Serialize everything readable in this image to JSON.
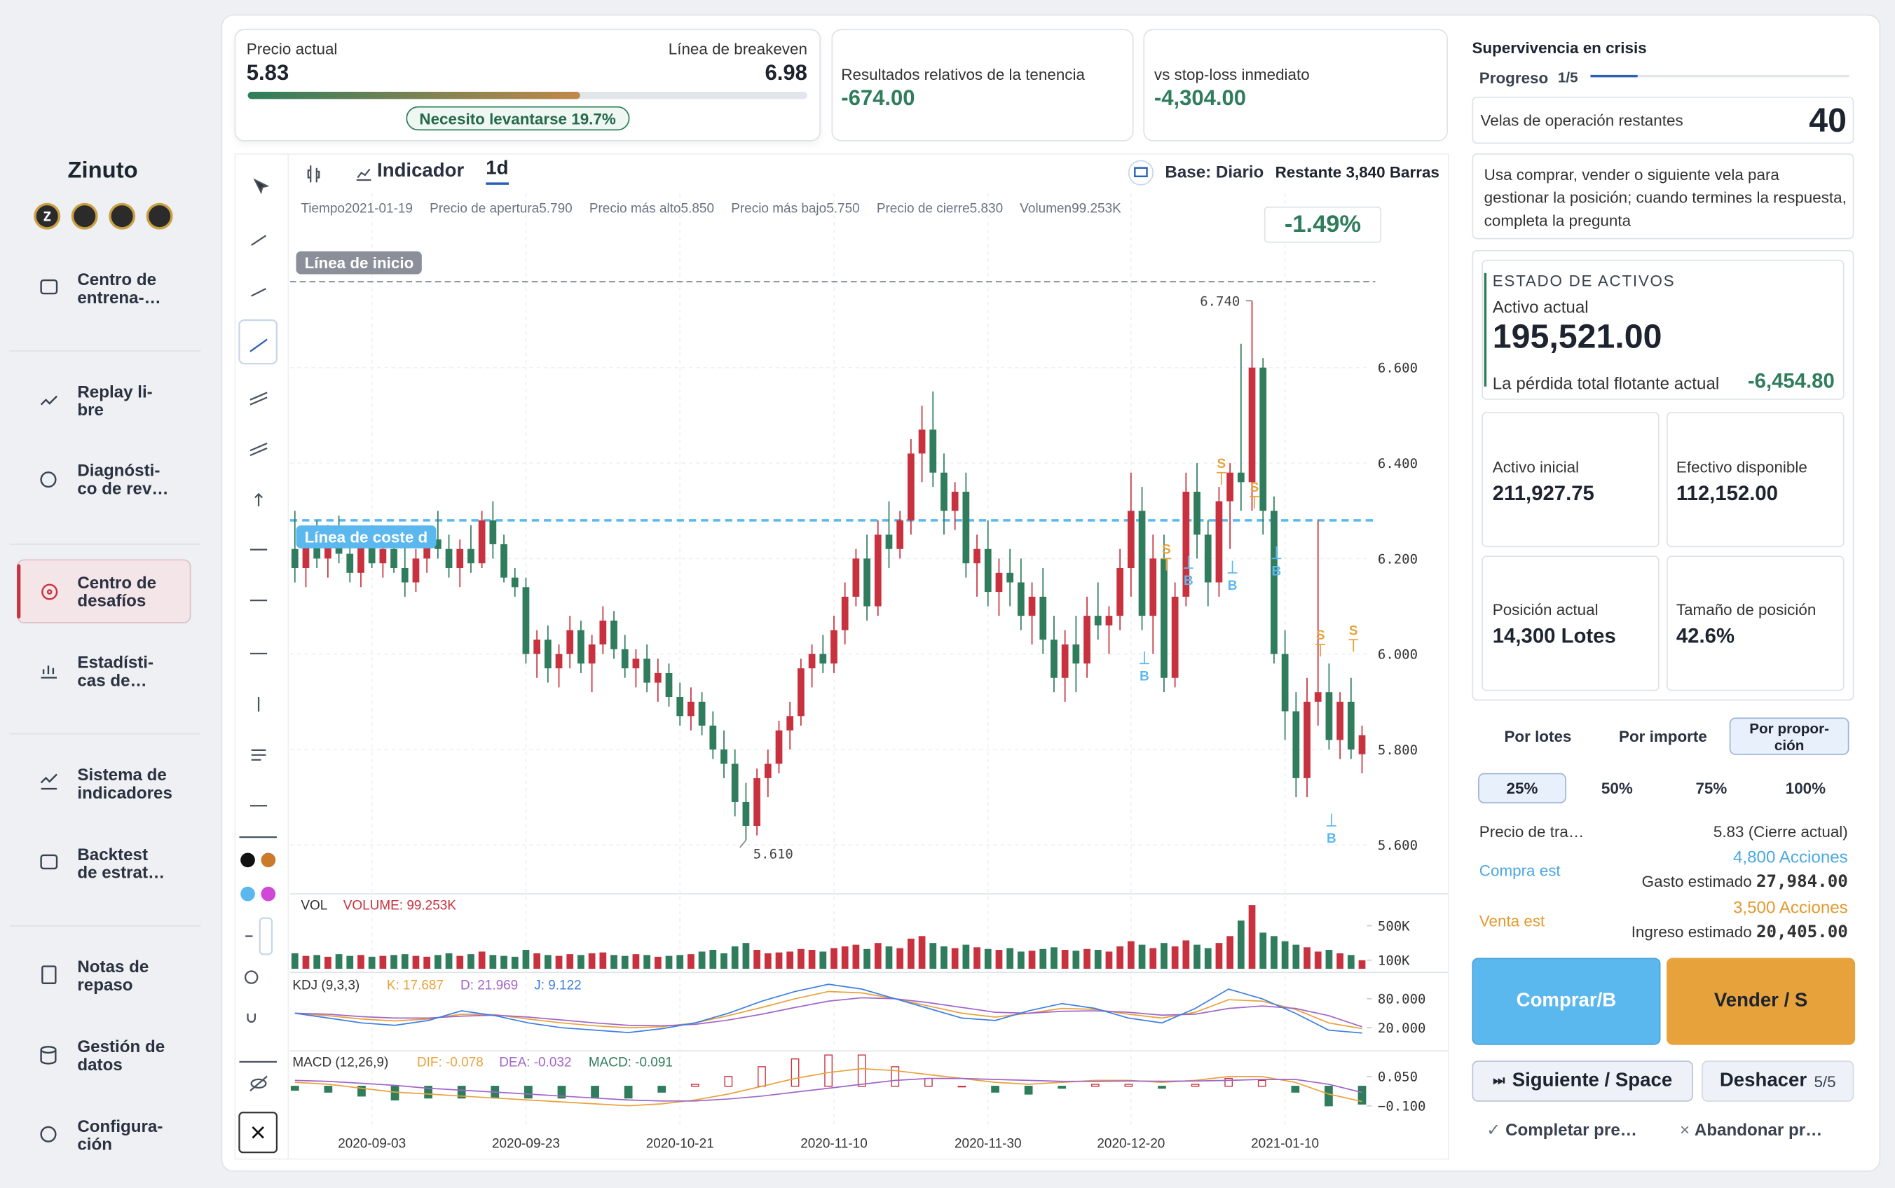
{
  "sidebar": {
    "brand": "Zinuto",
    "nav": [
      "Centro de\nentrena-…",
      "Replay li-\nbre",
      "Diagnósti-\nco de rev…",
      "Centro de\ndesafíos",
      "Estadísti-\ncas de…",
      "Sistema de\nindicadores",
      "Backtest\nde estrat…",
      "Notas de\nrepaso",
      "Gestión de\ndatos",
      "Configura-\nción"
    ]
  },
  "header": {
    "price_label": "Precio actual",
    "price": "5.83",
    "breakeven_label": "Línea de breakeven",
    "breakeven": "6.98",
    "badge": "Necesito levantarse 19.7%",
    "holding_label": "Resultados relativos de la tenencia",
    "holding": "-674.00",
    "stop_label": "vs stop-loss inmediato",
    "stop": "-4,304.00"
  },
  "toolbar": {
    "indicator": "Indicador",
    "period": "1d",
    "base": "Base: Diario",
    "remaining": "Restante 3,840 Barras"
  },
  "ohlc_info": [
    "Tiempo2021-01-19",
    "Precio de apertura5.790",
    "Precio más alto5.850",
    "Precio más bajo5.750",
    "Precio de cierre5.830",
    "Volumen99.253K"
  ],
  "change": "-1.49%",
  "start_line_label": "Línea de inicio",
  "cost_line_label": "Línea de coste d",
  "chart_data": {
    "type": "candlestick",
    "ylim": [
      5.5,
      6.95
    ],
    "yticks": [
      {
        "value": 5.6,
        "label": "5.600"
      },
      {
        "value": 5.8,
        "label": "5.800"
      },
      {
        "value": 6.0,
        "label": "6.000"
      },
      {
        "value": 6.2,
        "label": "6.200"
      },
      {
        "value": 6.4,
        "label": "6.400"
      },
      {
        "value": 6.6,
        "label": "6.600"
      }
    ],
    "xticks": [
      {
        "value": 7,
        "label": "2020-09-03"
      },
      {
        "value": 21,
        "label": "2020-09-23"
      },
      {
        "value": 35,
        "label": "2020-10-21"
      },
      {
        "value": 49,
        "label": "2020-11-10"
      },
      {
        "value": 63,
        "label": "2020-11-30"
      },
      {
        "value": 76,
        "label": "2020-12-20"
      },
      {
        "value": 90,
        "label": "2021-01-10"
      }
    ],
    "grid": true,
    "up_color": "#c8323e",
    "down_color": "#2f7d5c",
    "start_line": 6.78,
    "cost_line": 6.28,
    "annotations": [
      {
        "value": 6.74,
        "label": "6.740",
        "index": 87
      },
      {
        "value": 5.61,
        "label": "5.610",
        "index": 41
      }
    ],
    "candles": [
      [
        6.22,
        6.3,
        6.15,
        6.18
      ],
      [
        6.18,
        6.26,
        6.14,
        6.24
      ],
      [
        6.24,
        6.28,
        6.18,
        6.2
      ],
      [
        6.2,
        6.27,
        6.16,
        6.23
      ],
      [
        6.23,
        6.29,
        6.19,
        6.21
      ],
      [
        6.21,
        6.26,
        6.15,
        6.17
      ],
      [
        6.17,
        6.25,
        6.14,
        6.23
      ],
      [
        6.23,
        6.27,
        6.18,
        6.19
      ],
      [
        6.19,
        6.24,
        6.16,
        6.22
      ],
      [
        6.22,
        6.26,
        6.17,
        6.18
      ],
      [
        6.18,
        6.23,
        6.12,
        6.15
      ],
      [
        6.15,
        6.22,
        6.13,
        6.2
      ],
      [
        6.2,
        6.26,
        6.17,
        6.24
      ],
      [
        6.24,
        6.3,
        6.2,
        6.22
      ],
      [
        6.22,
        6.25,
        6.16,
        6.18
      ],
      [
        6.18,
        6.24,
        6.14,
        6.22
      ],
      [
        6.22,
        6.27,
        6.17,
        6.19
      ],
      [
        6.19,
        6.3,
        6.18,
        6.28
      ],
      [
        6.28,
        6.32,
        6.2,
        6.23
      ],
      [
        6.23,
        6.25,
        6.15,
        6.16
      ],
      [
        6.16,
        6.18,
        6.12,
        6.14
      ],
      [
        6.14,
        6.16,
        5.98,
        6.0
      ],
      [
        6.0,
        6.05,
        5.95,
        6.03
      ],
      [
        6.03,
        6.06,
        5.94,
        5.97
      ],
      [
        5.97,
        6.02,
        5.93,
        6.0
      ],
      [
        6.0,
        6.08,
        5.97,
        6.05
      ],
      [
        6.05,
        6.07,
        5.96,
        5.98
      ],
      [
        5.98,
        6.04,
        5.92,
        6.02
      ],
      [
        6.02,
        6.1,
        6.0,
        6.07
      ],
      [
        6.07,
        6.09,
        5.99,
        6.01
      ],
      [
        6.01,
        6.04,
        5.95,
        5.97
      ],
      [
        5.97,
        6.01,
        5.93,
        5.99
      ],
      [
        5.99,
        6.02,
        5.92,
        5.94
      ],
      [
        5.94,
        5.99,
        5.9,
        5.96
      ],
      [
        5.96,
        5.98,
        5.89,
        5.91
      ],
      [
        5.91,
        5.94,
        5.85,
        5.87
      ],
      [
        5.87,
        5.93,
        5.84,
        5.9
      ],
      [
        5.9,
        5.92,
        5.83,
        5.85
      ],
      [
        5.85,
        5.88,
        5.78,
        5.8
      ],
      [
        5.8,
        5.84,
        5.74,
        5.77
      ],
      [
        5.77,
        5.8,
        5.66,
        5.69
      ],
      [
        5.69,
        5.73,
        5.61,
        5.64
      ],
      [
        5.64,
        5.76,
        5.62,
        5.74
      ],
      [
        5.74,
        5.8,
        5.7,
        5.77
      ],
      [
        5.77,
        5.86,
        5.75,
        5.84
      ],
      [
        5.84,
        5.9,
        5.8,
        5.87
      ],
      [
        5.87,
        5.99,
        5.85,
        5.97
      ],
      [
        5.97,
        6.02,
        5.93,
        6.0
      ],
      [
        6.0,
        6.04,
        5.96,
        5.98
      ],
      [
        5.98,
        6.08,
        5.96,
        6.05
      ],
      [
        6.05,
        6.15,
        6.02,
        6.12
      ],
      [
        6.12,
        6.22,
        6.1,
        6.2
      ],
      [
        6.2,
        6.25,
        6.07,
        6.1
      ],
      [
        6.1,
        6.28,
        6.08,
        6.25
      ],
      [
        6.25,
        6.32,
        6.18,
        6.22
      ],
      [
        6.22,
        6.3,
        6.2,
        6.28
      ],
      [
        6.28,
        6.45,
        6.25,
        6.42
      ],
      [
        6.42,
        6.52,
        6.36,
        6.47
      ],
      [
        6.47,
        6.55,
        6.35,
        6.38
      ],
      [
        6.38,
        6.42,
        6.25,
        6.3
      ],
      [
        6.3,
        6.36,
        6.26,
        6.34
      ],
      [
        6.34,
        6.38,
        6.16,
        6.19
      ],
      [
        6.19,
        6.25,
        6.12,
        6.22
      ],
      [
        6.22,
        6.28,
        6.1,
        6.13
      ],
      [
        6.13,
        6.2,
        6.08,
        6.17
      ],
      [
        6.17,
        6.22,
        6.1,
        6.15
      ],
      [
        6.15,
        6.2,
        6.05,
        6.08
      ],
      [
        6.08,
        6.15,
        6.02,
        6.12
      ],
      [
        6.12,
        6.18,
        6.0,
        6.03
      ],
      [
        6.03,
        6.08,
        5.92,
        5.95
      ],
      [
        5.95,
        6.05,
        5.9,
        6.02
      ],
      [
        6.02,
        6.08,
        5.92,
        5.98
      ],
      [
        5.98,
        6.12,
        5.95,
        6.08
      ],
      [
        6.08,
        6.15,
        6.03,
        6.06
      ],
      [
        6.06,
        6.1,
        6.0,
        6.08
      ],
      [
        6.08,
        6.22,
        6.05,
        6.18
      ],
      [
        6.18,
        6.38,
        6.12,
        6.3
      ],
      [
        6.3,
        6.35,
        6.05,
        6.08
      ],
      [
        6.08,
        6.25,
        6.0,
        6.2
      ],
      [
        6.2,
        6.25,
        5.92,
        5.95
      ],
      [
        5.95,
        6.15,
        5.93,
        6.12
      ],
      [
        6.12,
        6.38,
        6.1,
        6.34
      ],
      [
        6.34,
        6.4,
        6.2,
        6.25
      ],
      [
        6.25,
        6.28,
        6.1,
        6.15
      ],
      [
        6.15,
        6.35,
        6.12,
        6.32
      ],
      [
        6.32,
        6.4,
        6.22,
        6.38
      ],
      [
        6.38,
        6.65,
        6.3,
        6.36
      ],
      [
        6.36,
        6.74,
        6.3,
        6.6
      ],
      [
        6.6,
        6.62,
        6.25,
        6.3
      ],
      [
        6.3,
        6.33,
        5.98,
        6.0
      ],
      [
        6.0,
        6.05,
        5.82,
        5.88
      ],
      [
        5.88,
        5.92,
        5.7,
        5.74
      ],
      [
        5.74,
        5.95,
        5.7,
        5.9
      ],
      [
        5.9,
        6.28,
        5.85,
        5.92
      ],
      [
        5.92,
        5.98,
        5.8,
        5.82
      ],
      [
        5.82,
        5.92,
        5.78,
        5.9
      ],
      [
        5.9,
        5.95,
        5.78,
        5.8
      ],
      [
        5.79,
        5.85,
        5.75,
        5.83
      ]
    ],
    "markers": [
      {
        "label": "B",
        "index": 77,
        "price": 5.98
      },
      {
        "label": "S",
        "index": 79,
        "price": 6.2
      },
      {
        "label": "B",
        "index": 81,
        "price": 6.18
      },
      {
        "label": "S",
        "index": 84,
        "price": 6.38
      },
      {
        "label": "B",
        "index": 85,
        "price": 6.17
      },
      {
        "label": "S",
        "index": 87,
        "price": 6.33
      },
      {
        "label": "B",
        "index": 89,
        "price": 6.2
      },
      {
        "label": "S",
        "index": 93,
        "price": 6.02
      },
      {
        "label": "B",
        "index": 94,
        "price": 5.64
      },
      {
        "label": "S",
        "index": 96,
        "price": 6.03
      }
    ],
    "volume": {
      "name": "VOL",
      "label": "VOLUME: 99.253K",
      "ylim": [
        0,
        800
      ],
      "yticks": [
        {
          "value": 100,
          "label": "100K"
        },
        {
          "value": 500,
          "label": "500K"
        }
      ],
      "values": [
        180,
        150,
        160,
        140,
        170,
        150,
        160,
        140,
        150,
        160,
        170,
        150,
        140,
        160,
        180,
        150,
        170,
        200,
        160,
        150,
        140,
        220,
        180,
        160,
        150,
        170,
        160,
        180,
        190,
        160,
        150,
        170,
        160,
        140,
        150,
        160,
        170,
        200,
        220,
        180,
        260,
        300,
        220,
        180,
        190,
        200,
        230,
        220,
        200,
        240,
        260,
        280,
        230,
        300,
        260,
        240,
        350,
        380,
        300,
        260,
        240,
        280,
        250,
        230,
        220,
        240,
        200,
        210,
        230,
        250,
        220,
        210,
        230,
        220,
        200,
        260,
        320,
        280,
        240,
        300,
        260,
        330,
        280,
        240,
        300,
        380,
        560,
        740,
        420,
        380,
        320,
        280,
        250,
        200,
        220,
        180,
        160,
        99.253
      ]
    },
    "kdj": {
      "name": "KDJ (9,3,3)",
      "ylim": [
        -8,
        122
      ],
      "yticks": [
        {
          "value": 20,
          "label": "20.000"
        },
        {
          "value": 80,
          "label": "80.000"
        }
      ],
      "series": [
        {
          "name": "K: 17.687",
          "color": "#e8a23c",
          "values": [
            50,
            45,
            38,
            34,
            38,
            48,
            47,
            38,
            30,
            24,
            20,
            22,
            30,
            45,
            62,
            80,
            95,
            92,
            80,
            65,
            50,
            42,
            50,
            60,
            58,
            48,
            40,
            52,
            78,
            75,
            58,
            30,
            18
          ]
        },
        {
          "name": "D: 21.969",
          "color": "#a066c8",
          "values": [
            50,
            48,
            43,
            40,
            40,
            44,
            46,
            42,
            36,
            30,
            25,
            24,
            27,
            36,
            48,
            62,
            75,
            82,
            80,
            72,
            62,
            52,
            50,
            54,
            55,
            52,
            46,
            48,
            60,
            65,
            60,
            45,
            22
          ]
        },
        {
          "name": "J: 9.122",
          "color": "#3d7fe0",
          "values": [
            50,
            40,
            30,
            25,
            35,
            55,
            45,
            30,
            20,
            15,
            10,
            18,
            30,
            50,
            75,
            95,
            110,
            100,
            80,
            60,
            40,
            35,
            55,
            70,
            60,
            40,
            30,
            60,
            100,
            80,
            50,
            15,
            9
          ]
        }
      ]
    },
    "macd": {
      "name": "MACD (12,26,9)",
      "ylim": [
        -0.19,
        0.15
      ],
      "yticks": [
        {
          "value": -0.1,
          "label": "−0.100"
        },
        {
          "value": 0.05,
          "label": "0.050"
        }
      ],
      "series": [
        {
          "name": "DIF: -0.078",
          "color": "#e8a23c",
          "values": [
            0.02,
            0.01,
            -0.01,
            -0.03,
            -0.04,
            -0.05,
            -0.06,
            -0.07,
            -0.08,
            -0.09,
            -0.1,
            -0.09,
            -0.07,
            -0.04,
            0.0,
            0.04,
            0.07,
            0.09,
            0.08,
            0.06,
            0.04,
            0.02,
            0.01,
            0.02,
            0.03,
            0.03,
            0.02,
            0.03,
            0.05,
            0.05,
            0.02,
            -0.04,
            -0.078
          ]
        },
        {
          "name": "DEA: -0.032",
          "color": "#a066c8",
          "values": [
            0.03,
            0.025,
            0.015,
            0.005,
            -0.01,
            -0.02,
            -0.03,
            -0.04,
            -0.05,
            -0.06,
            -0.07,
            -0.075,
            -0.075,
            -0.065,
            -0.05,
            -0.03,
            -0.01,
            0.01,
            0.03,
            0.04,
            0.04,
            0.035,
            0.03,
            0.025,
            0.025,
            0.027,
            0.026,
            0.027,
            0.03,
            0.035,
            0.035,
            0.01,
            -0.032
          ]
        }
      ],
      "hist": {
        "name": "MACD: -0.091",
        "values": [
          -0.02,
          -0.03,
          -0.05,
          -0.07,
          -0.06,
          -0.06,
          -0.06,
          -0.06,
          -0.06,
          -0.06,
          -0.06,
          -0.03,
          0.01,
          0.05,
          0.1,
          0.14,
          0.16,
          0.16,
          0.1,
          0.04,
          0.0,
          -0.03,
          -0.04,
          -0.01,
          0.01,
          0.01,
          -0.01,
          0.01,
          0.04,
          0.03,
          -0.03,
          -0.1,
          -0.091
        ]
      }
    }
  },
  "panel": {
    "title": "Supervivencia en crisis",
    "progress_label": "Progreso",
    "progress": "1/5",
    "remaining_label": "Velas de operación restantes",
    "remaining": "40",
    "hint": "Usa comprar, vender o siguiente vela para gestionar la posición; cuando termines la respuesta, completa la pregunta",
    "assets_title": "ESTADO DE ACTIVOS",
    "current_label": "Activo actual",
    "current": "195,521.00",
    "floating_label": "La pérdida total flotante actual",
    "floating": "-6,454.80",
    "stats": [
      {
        "label": "Activo inicial",
        "value": "211,927.75"
      },
      {
        "label": "Efectivo disponible",
        "value": "112,152.00"
      },
      {
        "label": "Posición actual",
        "value": "14,300 Lotes"
      },
      {
        "label": "Tamaño de posición",
        "value": "42.6%"
      }
    ],
    "modes": [
      "Por lotes",
      "Por importe",
      "Por propor-\nción"
    ],
    "percents": [
      "25%",
      "50%",
      "75%",
      "100%"
    ],
    "trade_price_label": "Precio de tra…",
    "trade_price": "5.83 (Cierre actual)",
    "buy_label": "Compra est",
    "buy_shares": "4,800 Acciones",
    "buy_cost_label": "Gasto estimado",
    "buy_cost": "27,984.00",
    "sell_label": "Venta est",
    "sell_shares": "3,500 Acciones",
    "sell_income_label": "Ingreso estimado",
    "sell_income": "20,405.00",
    "buy_button": "Comprar/B",
    "sell_button": "Vender / S",
    "next_button": "Siguiente / Space",
    "undo_button": "Deshacer",
    "undo_count": "5/5",
    "complete": "Completar pre…",
    "abandon": "Abandonar pr…"
  }
}
